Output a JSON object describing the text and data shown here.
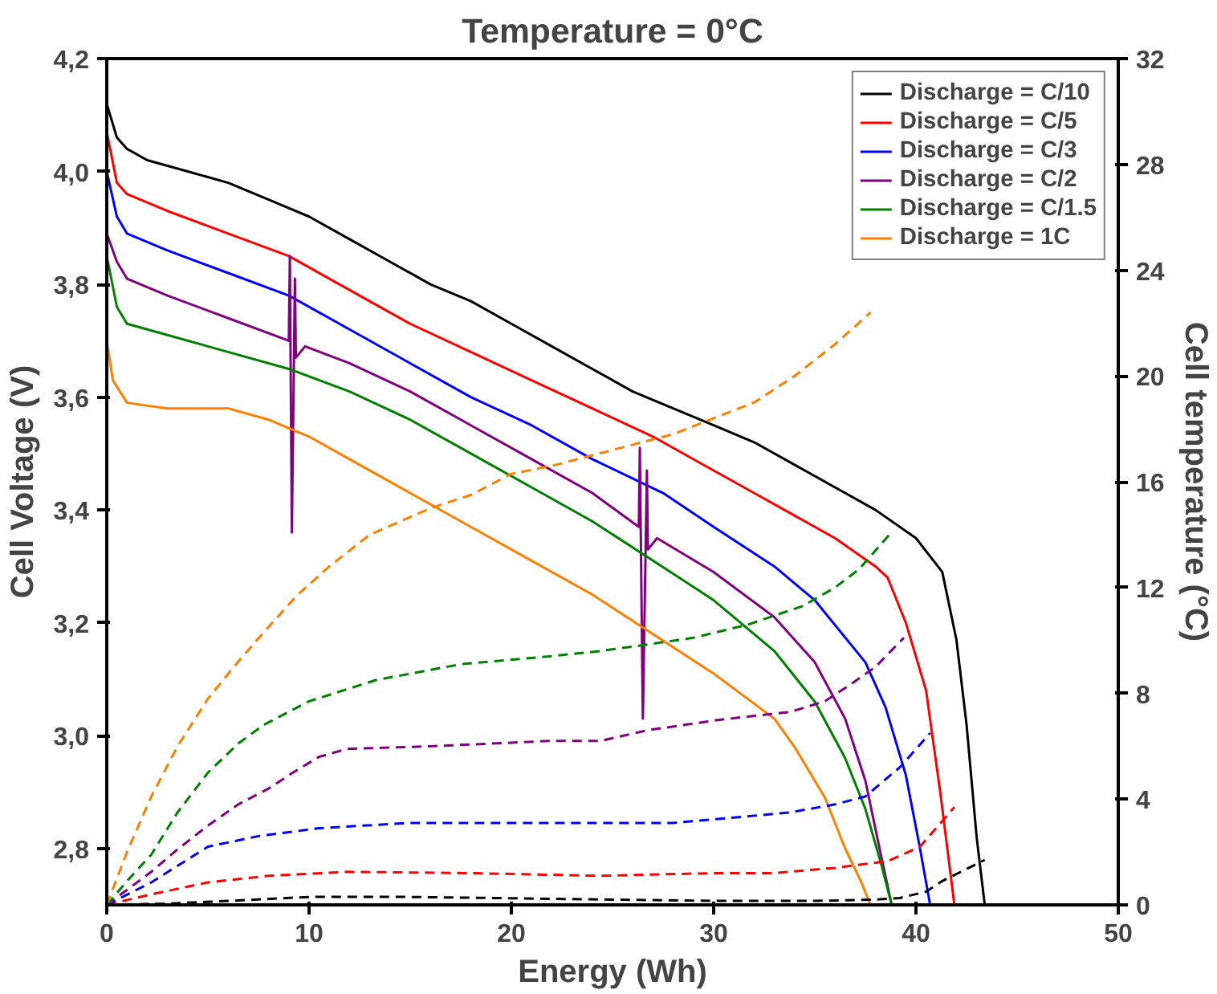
{
  "chart_data": {
    "type": "line",
    "title": "Temperature = 0°C",
    "xlabel": "Energy (Wh)",
    "ylabel": "Cell Voltage (V)",
    "y2label": "Cell temperature (°C)",
    "xlim": [
      0,
      50
    ],
    "xticks": [
      0,
      10,
      20,
      30,
      40,
      50
    ],
    "ylim": [
      2.7,
      4.2
    ],
    "yticks": [
      {
        "value": 2.8,
        "label": "2,8"
      },
      {
        "value": 3.0,
        "label": "3,0"
      },
      {
        "value": 3.2,
        "label": "3,2"
      },
      {
        "value": 3.4,
        "label": "3,4"
      },
      {
        "value": 3.6,
        "label": "3,6"
      },
      {
        "value": 3.8,
        "label": "3,8"
      },
      {
        "value": 4.0,
        "label": "4,0"
      },
      {
        "value": 4.2,
        "label": "4,2"
      }
    ],
    "y2lim": [
      0,
      32
    ],
    "y2ticks": [
      0,
      4,
      8,
      12,
      16,
      20,
      24,
      28,
      32
    ],
    "grid": false,
    "legend": "top right",
    "marker": "none",
    "series": [
      {
        "name": "Discharge = C/10",
        "color": "#000000",
        "line_style": "solid",
        "x": [
          0,
          0.5,
          1,
          2,
          4,
          6,
          8,
          10,
          12,
          14,
          16,
          18,
          20,
          22,
          24,
          26,
          28,
          30,
          32,
          34,
          36,
          38,
          40,
          41.3,
          42,
          42.5,
          43,
          43.4
        ],
        "values": [
          4.12,
          4.06,
          4.04,
          4.02,
          4.0,
          3.98,
          3.95,
          3.92,
          3.88,
          3.84,
          3.8,
          3.77,
          3.73,
          3.69,
          3.65,
          3.61,
          3.58,
          3.55,
          3.52,
          3.48,
          3.44,
          3.4,
          3.35,
          3.29,
          3.17,
          3.02,
          2.82,
          2.7
        ]
      },
      {
        "name": "Discharge = C/5",
        "color": "#ff0000",
        "line_style": "solid",
        "x": [
          0,
          0.5,
          1,
          3,
          6,
          9,
          12,
          15,
          18,
          21,
          24,
          27,
          30,
          32,
          34,
          36,
          38,
          38.6,
          39.5,
          40.5,
          41.2,
          41.9
        ],
        "values": [
          4.07,
          3.98,
          3.96,
          3.93,
          3.89,
          3.85,
          3.79,
          3.73,
          3.68,
          3.63,
          3.58,
          3.53,
          3.47,
          3.43,
          3.39,
          3.35,
          3.3,
          3.28,
          3.2,
          3.08,
          2.9,
          2.7
        ]
      },
      {
        "name": "Discharge = C/3",
        "color": "#0000ff",
        "line_style": "solid",
        "x": [
          0,
          0.5,
          1,
          3,
          6,
          9,
          12,
          15,
          18,
          21,
          24,
          27.5,
          30,
          33,
          35,
          37.5,
          38.5,
          39.5,
          40.2,
          40.7
        ],
        "values": [
          4.0,
          3.92,
          3.89,
          3.86,
          3.82,
          3.78,
          3.72,
          3.66,
          3.6,
          3.55,
          3.49,
          3.43,
          3.37,
          3.3,
          3.24,
          3.13,
          3.05,
          2.93,
          2.8,
          2.7
        ]
      },
      {
        "name": "Discharge = C/2",
        "color": "#800080",
        "line_style": "solid",
        "x": [
          0,
          0.5,
          1,
          3,
          6,
          9,
          9.05,
          9.15,
          9.3,
          9.35,
          9.8,
          12,
          15,
          18,
          21,
          24,
          26.3,
          26.35,
          26.5,
          26.7,
          26.75,
          27.2,
          30,
          33,
          35,
          36.5,
          37.5,
          38.2,
          38.8
        ],
        "values": [
          3.89,
          3.84,
          3.81,
          3.78,
          3.74,
          3.7,
          3.85,
          3.36,
          3.81,
          3.67,
          3.69,
          3.66,
          3.61,
          3.55,
          3.49,
          3.43,
          3.37,
          3.51,
          3.03,
          3.47,
          3.33,
          3.35,
          3.29,
          3.21,
          3.13,
          3.03,
          2.92,
          2.8,
          2.7
        ]
      },
      {
        "name": "Discharge = C/1.5",
        "color": "#008000",
        "line_style": "solid",
        "x": [
          0,
          0.5,
          1,
          3,
          6,
          9,
          12,
          15,
          18,
          21,
          24,
          28.3,
          30,
          33,
          35,
          36.5,
          37.5,
          38.3,
          38.8
        ],
        "values": [
          3.85,
          3.76,
          3.73,
          3.71,
          3.68,
          3.65,
          3.61,
          3.56,
          3.5,
          3.44,
          3.38,
          3.28,
          3.24,
          3.15,
          3.06,
          2.96,
          2.87,
          2.77,
          2.7
        ]
      },
      {
        "name": "Discharge = 1C",
        "color": "#ff8000",
        "line_style": "solid",
        "x": [
          0,
          0.3,
          1,
          3,
          6,
          8,
          10,
          12,
          15,
          18,
          21,
          24,
          27,
          30,
          33,
          34,
          35.5,
          36.5,
          37.3,
          37.75
        ],
        "values": [
          3.7,
          3.63,
          3.59,
          3.58,
          3.58,
          3.56,
          3.53,
          3.49,
          3.43,
          3.37,
          3.31,
          3.25,
          3.18,
          3.11,
          3.03,
          2.98,
          2.89,
          2.8,
          2.74,
          2.7
        ]
      },
      {
        "color": "#000000",
        "line_style": "dashed",
        "axis": "y2",
        "x": [
          0,
          3,
          6,
          10,
          15,
          20,
          25,
          30,
          35,
          38,
          39.2,
          40.5,
          41.3,
          43.4
        ],
        "values": [
          0,
          0.05,
          0.15,
          0.3,
          0.3,
          0.25,
          0.2,
          0.15,
          0.15,
          0.2,
          0.26,
          0.5,
          0.9,
          1.7
        ]
      },
      {
        "color": "#ff0000",
        "line_style": "dashed",
        "axis": "y2",
        "x": [
          0,
          2.2,
          5,
          8,
          11.9,
          18,
          24.4,
          30,
          33,
          36,
          38.6,
          40.2,
          41.9
        ],
        "values": [
          0,
          0.4,
          0.85,
          1.1,
          1.25,
          1.2,
          1.1,
          1.2,
          1.2,
          1.4,
          1.65,
          2.2,
          3.7
        ]
      },
      {
        "color": "#0000ff",
        "line_style": "dashed",
        "axis": "y2",
        "x": [
          0,
          2.2,
          5,
          7.5,
          10.5,
          15,
          21.9,
          28,
          31,
          33.8,
          36,
          37.5,
          39.2,
          40.7
        ],
        "values": [
          0,
          0.85,
          2.2,
          2.6,
          2.9,
          3.1,
          3.1,
          3.1,
          3.3,
          3.5,
          3.8,
          4.1,
          5.2,
          6.5
        ]
      },
      {
        "color": "#800080",
        "line_style": "dashed",
        "axis": "y2",
        "x": [
          0,
          2.2,
          3.5,
          5,
          6.5,
          8,
          9.2,
          10.5,
          11.9,
          16.1,
          21.9,
          24.4,
          26.7,
          30.3,
          33.8,
          35.5,
          36.7,
          38,
          39.4
        ],
        "values": [
          0,
          1.25,
          2.1,
          3,
          3.8,
          4.4,
          5,
          5.6,
          5.9,
          6,
          6.2,
          6.2,
          6.6,
          7,
          7.3,
          7.7,
          8.3,
          9,
          10.1
        ]
      },
      {
        "color": "#008000",
        "line_style": "dashed",
        "axis": "y2",
        "x": [
          0,
          1,
          2.2,
          3.5,
          5,
          6.5,
          7.75,
          10,
          13.3,
          17.5,
          21.9,
          24.4,
          26.3,
          29,
          31.7,
          34.4,
          36,
          37.2,
          38.8
        ],
        "values": [
          0,
          0.9,
          1.9,
          3.5,
          5,
          6.1,
          6.8,
          7.7,
          8.5,
          9.1,
          9.4,
          9.6,
          9.8,
          10.1,
          10.6,
          11.3,
          12,
          12.7,
          14.1
        ]
      },
      {
        "color": "#ff8000",
        "line_style": "dashed",
        "axis": "y2",
        "x": [
          0,
          1,
          2.2,
          3.5,
          5,
          6.5,
          7.75,
          9.4,
          11,
          13,
          16,
          18,
          20,
          22,
          24,
          26,
          28,
          30,
          32,
          34,
          36,
          37.75
        ],
        "values": [
          0,
          2,
          4.1,
          6,
          7.8,
          9.2,
          10.3,
          11.7,
          12.8,
          14,
          15,
          15.5,
          16.3,
          16.6,
          17,
          17.4,
          17.8,
          18.4,
          19,
          20,
          21.2,
          22.4
        ]
      }
    ]
  }
}
